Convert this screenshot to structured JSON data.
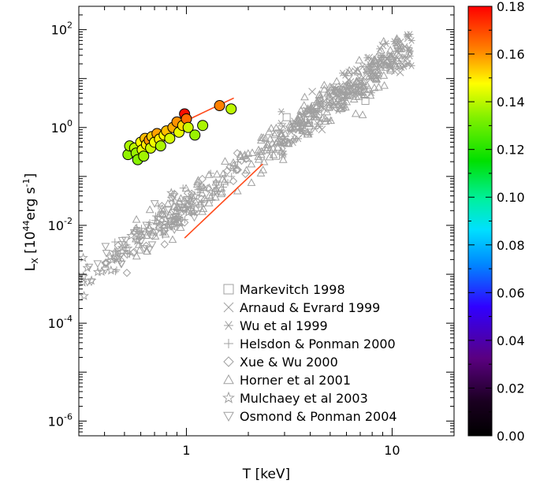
{
  "chart_data": {
    "type": "scatter",
    "x_scale": "log",
    "y_scale": "log",
    "xlim": [
      0.3,
      20
    ],
    "ylim": [
      5e-07,
      300
    ],
    "xlabel": "T [keV]",
    "ylabel": {
      "base": "L",
      "sub": "X",
      "pre": " [10",
      "sup": "44",
      "mid": "erg s",
      "sup2": "-1",
      "post": "]"
    },
    "x_ticks": [
      {
        "value": 1,
        "label": "1"
      },
      {
        "value": 10,
        "label": "10"
      }
    ],
    "y_ticks": [
      {
        "value": 1e-06,
        "base": "10",
        "exp": "-6"
      },
      {
        "value": 0.0001,
        "base": "10",
        "exp": "-4"
      },
      {
        "value": 0.01,
        "base": "10",
        "exp": "-2"
      },
      {
        "value": 1,
        "base": "10",
        "exp": "0"
      },
      {
        "value": 100,
        "base": "10",
        "exp": "2"
      }
    ],
    "legend_position": "bottom-right",
    "legend": [
      {
        "marker": "square",
        "label": "Markevitch 1998"
      },
      {
        "marker": "x",
        "label": "Arnaud & Evrard 1999"
      },
      {
        "marker": "asterisk",
        "label": "Wu et al 1999"
      },
      {
        "marker": "plus",
        "label": "Helsdon & Ponman 2000"
      },
      {
        "marker": "diamond",
        "label": "Xue & Wu 2000"
      },
      {
        "marker": "triangle-up",
        "label": "Horner et al 2001"
      },
      {
        "marker": "star",
        "label": "Mulchaey et al 2003"
      },
      {
        "marker": "triangle-down",
        "label": "Osmond & Ponman 2004"
      }
    ],
    "observed_color": "#a0a0a0",
    "fit_line_color": "#ff4a1a",
    "fit_lines": [
      {
        "x": [
          0.55,
          1.7
        ],
        "y": [
          0.42,
          4.0
        ]
      },
      {
        "x": [
          0.98,
          2.35
        ],
        "y": [
          0.0055,
          0.18
        ]
      }
    ],
    "simulated": {
      "marker": "filled-circle",
      "points": [
        {
          "x": 0.52,
          "y": 0.28,
          "c": 0.135
        },
        {
          "x": 0.53,
          "y": 0.42,
          "c": 0.138
        },
        {
          "x": 0.56,
          "y": 0.38,
          "c": 0.14
        },
        {
          "x": 0.57,
          "y": 0.3,
          "c": 0.136
        },
        {
          "x": 0.58,
          "y": 0.22,
          "c": 0.134
        },
        {
          "x": 0.6,
          "y": 0.5,
          "c": 0.148
        },
        {
          "x": 0.61,
          "y": 0.35,
          "c": 0.145
        },
        {
          "x": 0.62,
          "y": 0.26,
          "c": 0.137
        },
        {
          "x": 0.63,
          "y": 0.6,
          "c": 0.155
        },
        {
          "x": 0.64,
          "y": 0.45,
          "c": 0.15
        },
        {
          "x": 0.66,
          "y": 0.55,
          "c": 0.16
        },
        {
          "x": 0.67,
          "y": 0.38,
          "c": 0.142
        },
        {
          "x": 0.68,
          "y": 0.65,
          "c": 0.153
        },
        {
          "x": 0.7,
          "y": 0.5,
          "c": 0.146
        },
        {
          "x": 0.72,
          "y": 0.75,
          "c": 0.158
        },
        {
          "x": 0.74,
          "y": 0.58,
          "c": 0.15
        },
        {
          "x": 0.75,
          "y": 0.42,
          "c": 0.138
        },
        {
          "x": 0.78,
          "y": 0.7,
          "c": 0.148
        },
        {
          "x": 0.8,
          "y": 0.85,
          "c": 0.155
        },
        {
          "x": 0.83,
          "y": 0.6,
          "c": 0.143
        },
        {
          "x": 0.86,
          "y": 1.0,
          "c": 0.157
        },
        {
          "x": 0.9,
          "y": 1.3,
          "c": 0.16
        },
        {
          "x": 0.92,
          "y": 0.8,
          "c": 0.145
        },
        {
          "x": 0.96,
          "y": 1.1,
          "c": 0.152
        },
        {
          "x": 0.98,
          "y": 1.9,
          "c": 0.178
        },
        {
          "x": 1.0,
          "y": 1.5,
          "c": 0.165
        },
        {
          "x": 1.02,
          "y": 1.0,
          "c": 0.142
        },
        {
          "x": 1.1,
          "y": 0.7,
          "c": 0.136
        },
        {
          "x": 1.2,
          "y": 1.1,
          "c": 0.138
        },
        {
          "x": 1.45,
          "y": 2.8,
          "c": 0.162
        },
        {
          "x": 1.65,
          "y": 2.4,
          "c": 0.14
        }
      ]
    },
    "colorbar": {
      "range": [
        0,
        0.18
      ],
      "ticks": [
        "0.00",
        "0.02",
        "0.04",
        "0.06",
        "0.08",
        "0.10",
        "0.12",
        "0.14",
        "0.16",
        "0.18"
      ]
    }
  }
}
